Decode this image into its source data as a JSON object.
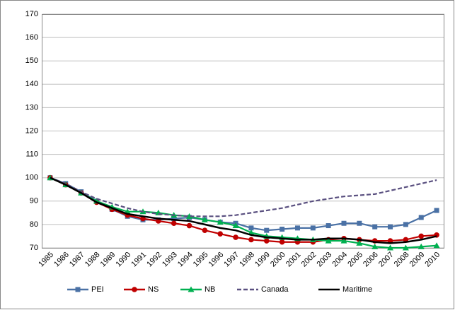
{
  "chart_data": {
    "type": "line",
    "categories": [
      "1985",
      "1986",
      "1987",
      "1988",
      "1989",
      "1990",
      "1991",
      "1992",
      "1993",
      "1994",
      "1995",
      "1996",
      "1997",
      "1998",
      "1999",
      "2000",
      "2001",
      "2002",
      "2003",
      "2004",
      "2005",
      "2006",
      "2007",
      "2008",
      "2009",
      "2010"
    ],
    "ylim": [
      70,
      170
    ],
    "yticks": [
      70,
      80,
      90,
      100,
      110,
      120,
      130,
      140,
      150,
      160,
      170
    ],
    "grid": true,
    "legend": "bottom",
    "series": [
      {
        "name": "PEI",
        "color": "#4a71a5",
        "marker": "square",
        "dash": false,
        "values": [
          100,
          97.5,
          94,
          90,
          86.5,
          83.5,
          82,
          82,
          82.5,
          83,
          82,
          81,
          80.5,
          78.5,
          77.5,
          78,
          78.5,
          78.5,
          79.5,
          80.5,
          80.5,
          79,
          79,
          80,
          83,
          86
        ]
      },
      {
        "name": "NS",
        "color": "#c00000",
        "marker": "circle",
        "dash": false,
        "values": [
          100,
          97,
          93.5,
          89.5,
          86.5,
          84,
          82.5,
          81.5,
          80.5,
          79.5,
          77.5,
          76,
          74.5,
          73.5,
          73,
          72.5,
          72.5,
          72.5,
          73.5,
          74,
          73.5,
          73,
          73,
          73.5,
          75,
          75.5
        ]
      },
      {
        "name": "NB",
        "color": "#00b050",
        "marker": "triangle",
        "dash": false,
        "values": [
          100,
          97,
          93.5,
          90,
          87.5,
          85.5,
          85.5,
          85,
          84,
          83.5,
          82,
          81,
          79.5,
          76.5,
          75,
          74.5,
          74,
          73.5,
          73,
          73,
          72,
          70.5,
          70,
          70,
          70.5,
          71
        ]
      },
      {
        "name": "Canada",
        "color": "#5a5080",
        "marker": "none",
        "dash": true,
        "values": [
          100,
          97.5,
          94,
          91,
          89,
          87,
          85.5,
          84.5,
          84,
          83.5,
          83.5,
          83.5,
          84,
          85,
          86,
          87,
          88.5,
          90,
          91,
          92,
          92.5,
          93,
          94.5,
          96,
          97.5,
          99
        ]
      },
      {
        "name": "Maritime",
        "color": "#000000",
        "marker": "none",
        "dash": false,
        "values": [
          100,
          97,
          93.5,
          89.5,
          87,
          84.5,
          83.5,
          82.5,
          82,
          81.5,
          80,
          78.5,
          77.5,
          75.5,
          74.5,
          74,
          73.5,
          73.5,
          74,
          74,
          73.5,
          72.5,
          72,
          72.5,
          73.5,
          75
        ]
      }
    ]
  }
}
